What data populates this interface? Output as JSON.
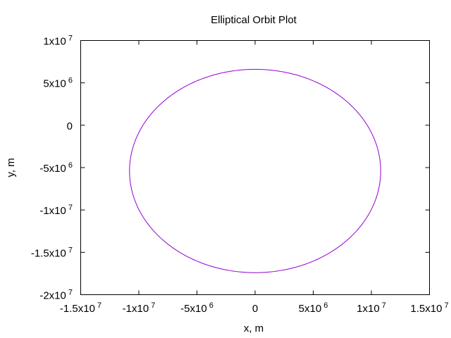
{
  "chart_data": {
    "type": "line",
    "title": "Elliptical Orbit Plot",
    "xlabel": "x, m",
    "ylabel": "y, m",
    "xlim": [
      -15000000,
      15000000
    ],
    "ylim": [
      -20000000,
      10000000
    ],
    "grid": false,
    "legend": false,
    "x_ticks": [
      {
        "value": -15000000,
        "base": "-1.5x10",
        "exp": "7"
      },
      {
        "value": -10000000,
        "base": "-1x10",
        "exp": "7"
      },
      {
        "value": -5000000,
        "base": "-5x10",
        "exp": "6"
      },
      {
        "value": 0,
        "base": "0",
        "exp": ""
      },
      {
        "value": 5000000,
        "base": "5x10",
        "exp": "6"
      },
      {
        "value": 10000000,
        "base": "1x10",
        "exp": "7"
      },
      {
        "value": 15000000,
        "base": "1.5x10",
        "exp": "7"
      }
    ],
    "y_ticks": [
      {
        "value": -20000000,
        "base": "-2x10",
        "exp": "7"
      },
      {
        "value": -15000000,
        "base": "-1.5x10",
        "exp": "7"
      },
      {
        "value": -10000000,
        "base": "-1x10",
        "exp": "7"
      },
      {
        "value": -5000000,
        "base": "-5x10",
        "exp": "6"
      },
      {
        "value": 0,
        "base": "0",
        "exp": ""
      },
      {
        "value": 5000000,
        "base": "5x10",
        "exp": "6"
      },
      {
        "value": 10000000,
        "base": "1x10",
        "exp": "7"
      }
    ],
    "series": [
      {
        "color": "#9400d3",
        "shape": "ellipse",
        "center": [
          0,
          -5400000
        ],
        "semi_axis_x": 10800000,
        "semi_axis_y": 12000000,
        "extent": {
          "x_min": -10800000,
          "x_max": 10800000,
          "y_min": -17400000,
          "y_max": 6600000
        }
      }
    ]
  }
}
